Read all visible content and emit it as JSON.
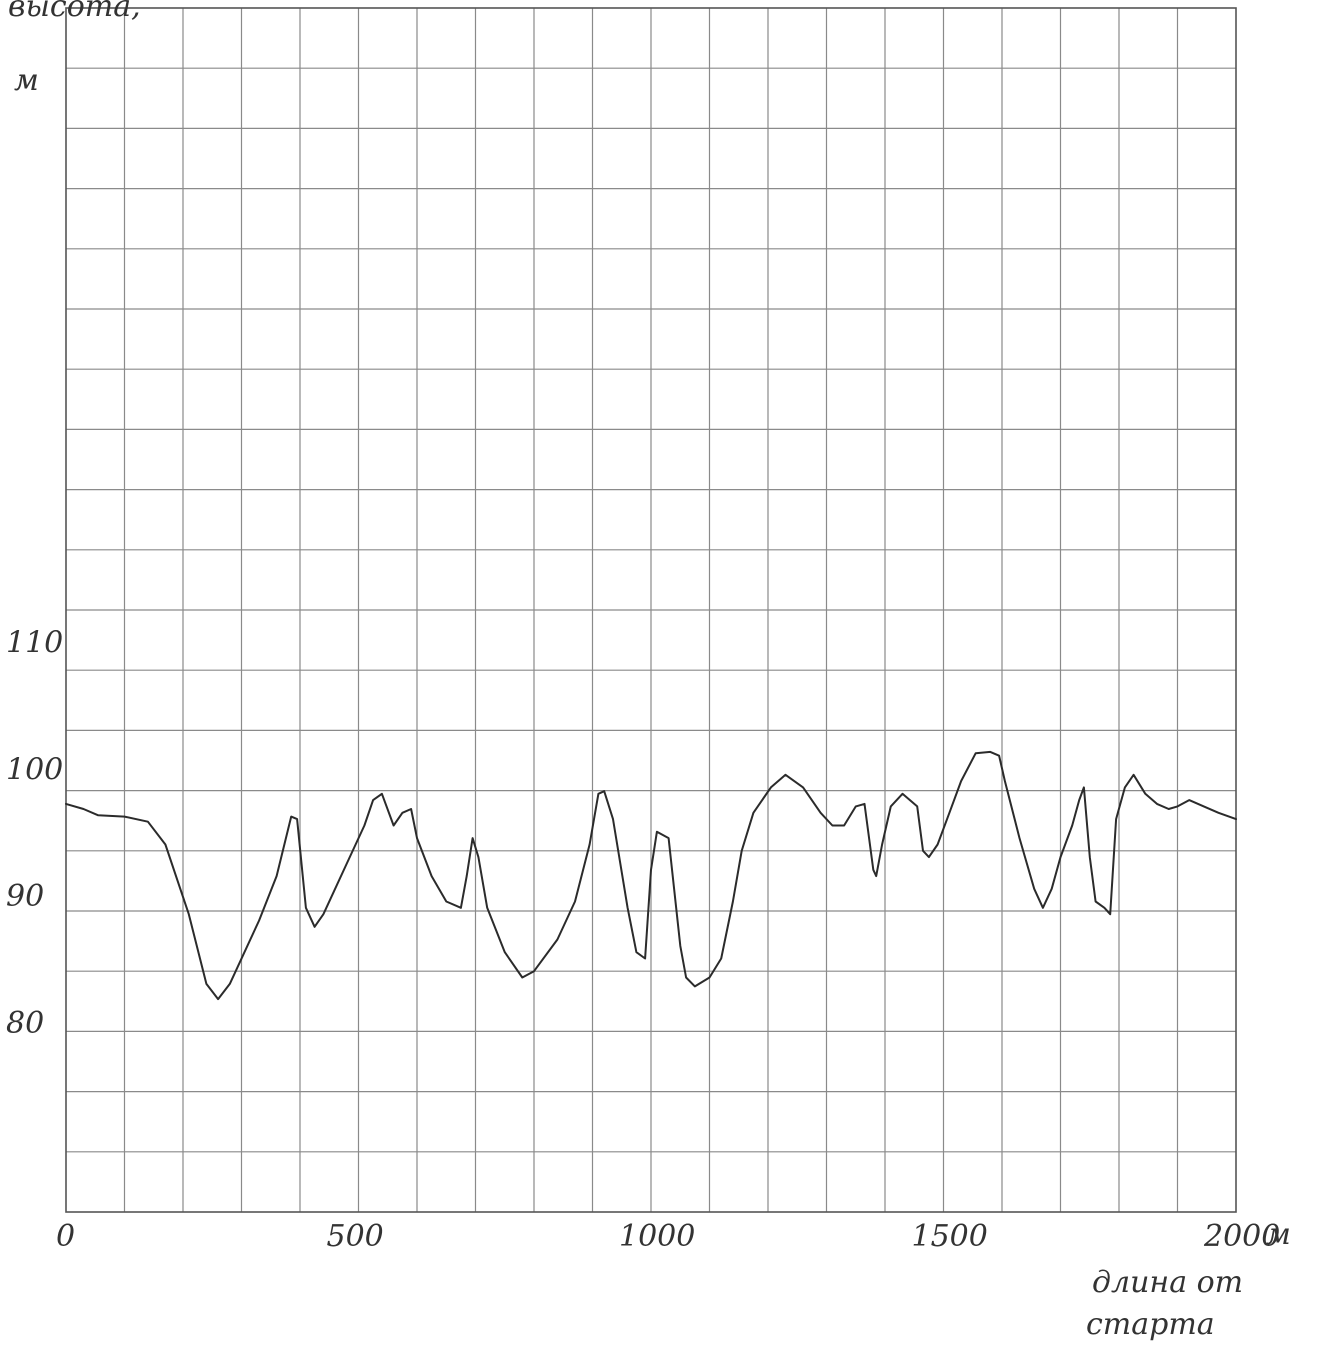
{
  "chart_data": {
    "type": "line",
    "title": "",
    "ylabel_line1": "высота,",
    "ylabel_line2": "м",
    "xlabel_unit": "м",
    "xlabel_line1": "длина от",
    "xlabel_line2": "старта",
    "x_range": [
      0,
      2000
    ],
    "y_range": [
      65,
      160
    ],
    "x_tick_labels": [
      "0",
      "500",
      "1000",
      "1500",
      "2000"
    ],
    "x_tick_values": [
      0,
      500,
      1000,
      1500,
      2000
    ],
    "y_tick_labels": [
      "80",
      "90",
      "100",
      "110"
    ],
    "y_tick_values": [
      80,
      90,
      100,
      110
    ],
    "grid": true,
    "series": [
      {
        "points": [
          [
            0,
            97.2
          ],
          [
            30,
            96.8
          ],
          [
            55,
            96.3
          ],
          [
            100,
            96.2
          ],
          [
            140,
            95.8
          ],
          [
            170,
            94.0
          ],
          [
            210,
            88.5
          ],
          [
            240,
            83.0
          ],
          [
            260,
            81.8
          ],
          [
            280,
            83.0
          ],
          [
            330,
            88.0
          ],
          [
            360,
            91.5
          ],
          [
            385,
            96.2
          ],
          [
            395,
            96.0
          ],
          [
            410,
            89.0
          ],
          [
            425,
            87.5
          ],
          [
            440,
            88.5
          ],
          [
            480,
            92.5
          ],
          [
            510,
            95.5
          ],
          [
            525,
            97.5
          ],
          [
            540,
            98.0
          ],
          [
            560,
            95.5
          ],
          [
            575,
            96.5
          ],
          [
            590,
            96.8
          ],
          [
            600,
            94.5
          ],
          [
            625,
            91.5
          ],
          [
            650,
            89.5
          ],
          [
            675,
            89.0
          ],
          [
            685,
            91.5
          ],
          [
            695,
            94.5
          ],
          [
            705,
            93.0
          ],
          [
            720,
            89.0
          ],
          [
            750,
            85.5
          ],
          [
            780,
            83.5
          ],
          [
            800,
            84.0
          ],
          [
            840,
            86.5
          ],
          [
            870,
            89.5
          ],
          [
            895,
            94.0
          ],
          [
            910,
            98.0
          ],
          [
            920,
            98.2
          ],
          [
            935,
            96.0
          ],
          [
            960,
            89.0
          ],
          [
            975,
            85.5
          ],
          [
            990,
            85.0
          ],
          [
            1000,
            92.0
          ],
          [
            1010,
            95.0
          ],
          [
            1030,
            94.5
          ],
          [
            1050,
            86.0
          ],
          [
            1060,
            83.5
          ],
          [
            1075,
            82.8
          ],
          [
            1100,
            83.5
          ],
          [
            1120,
            85.0
          ],
          [
            1140,
            89.5
          ],
          [
            1155,
            93.5
          ],
          [
            1175,
            96.5
          ],
          [
            1205,
            98.5
          ],
          [
            1230,
            99.5
          ],
          [
            1260,
            98.5
          ],
          [
            1290,
            96.5
          ],
          [
            1310,
            95.5
          ],
          [
            1330,
            95.5
          ],
          [
            1350,
            97.0
          ],
          [
            1365,
            97.2
          ],
          [
            1380,
            92.0
          ],
          [
            1385,
            91.5
          ],
          [
            1395,
            94.0
          ],
          [
            1410,
            97.0
          ],
          [
            1430,
            98.0
          ],
          [
            1455,
            97.0
          ],
          [
            1465,
            93.5
          ],
          [
            1475,
            93.0
          ],
          [
            1490,
            94.0
          ],
          [
            1510,
            96.5
          ],
          [
            1530,
            99.0
          ],
          [
            1555,
            101.2
          ],
          [
            1580,
            101.3
          ],
          [
            1595,
            101.0
          ],
          [
            1605,
            99.0
          ],
          [
            1630,
            94.5
          ],
          [
            1655,
            90.5
          ],
          [
            1670,
            89.0
          ],
          [
            1685,
            90.5
          ],
          [
            1700,
            93.0
          ],
          [
            1720,
            95.5
          ],
          [
            1732,
            97.5
          ],
          [
            1740,
            98.5
          ],
          [
            1750,
            93.0
          ],
          [
            1760,
            89.5
          ],
          [
            1775,
            89.0
          ],
          [
            1785,
            88.5
          ],
          [
            1795,
            96.0
          ],
          [
            1810,
            98.5
          ],
          [
            1825,
            99.5
          ],
          [
            1845,
            98.0
          ],
          [
            1865,
            97.2
          ],
          [
            1885,
            96.8
          ],
          [
            1900,
            97.0
          ],
          [
            1920,
            97.5
          ],
          [
            1945,
            97.0
          ],
          [
            1970,
            96.5
          ],
          [
            2000,
            96.0
          ]
        ]
      }
    ]
  }
}
